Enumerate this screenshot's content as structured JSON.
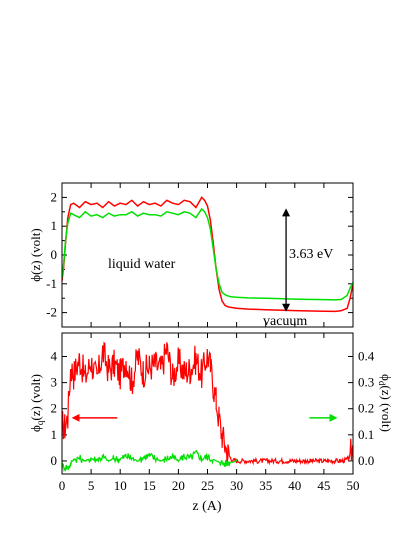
{
  "chart_data": [
    {
      "type": "line",
      "ylabel": "ϕ(z) (volt)",
      "xlim": [
        0,
        50
      ],
      "ylim": [
        -2.5,
        2.5
      ],
      "yticks": [
        -2,
        -1,
        0,
        1,
        2
      ],
      "x_ticks": [
        0,
        5,
        10,
        15,
        20,
        25,
        30,
        35,
        40,
        45,
        50
      ],
      "annotations": {
        "liquid": "liquid water",
        "vacuum": "vacuum",
        "gap": "3.63 eV"
      },
      "gap_arrow": {
        "x": 38.5,
        "y_top": 1.55,
        "y_bottom": -1.9
      },
      "series": [
        {
          "color": "#ff0000",
          "x": [
            0,
            0.3,
            0.6,
            1,
            1.5,
            2,
            3,
            4,
            5,
            6,
            7,
            8,
            9,
            10,
            11,
            12,
            13,
            14,
            15,
            16,
            17,
            18,
            19,
            20,
            21,
            22,
            23,
            24,
            24.5,
            25,
            25.5,
            26,
            26.5,
            27,
            27.5,
            28,
            28.5,
            29,
            30,
            32,
            35,
            38,
            40,
            42,
            45,
            47,
            48,
            49,
            49.5,
            50
          ],
          "y": [
            -0.9,
            -0.4,
            0.4,
            1.3,
            1.75,
            1.8,
            1.65,
            1.85,
            1.75,
            1.8,
            1.65,
            1.85,
            1.7,
            1.8,
            1.75,
            1.9,
            1.7,
            1.85,
            1.75,
            1.8,
            1.7,
            1.9,
            1.8,
            1.75,
            1.9,
            1.85,
            1.65,
            2.0,
            1.9,
            1.7,
            1.2,
            0.4,
            -0.5,
            -1.2,
            -1.6,
            -1.75,
            -1.8,
            -1.82,
            -1.85,
            -1.88,
            -1.9,
            -1.92,
            -1.93,
            -1.94,
            -1.95,
            -1.96,
            -1.93,
            -1.85,
            -1.5,
            -1.0
          ]
        },
        {
          "color": "#00e000",
          "x": [
            0,
            0.3,
            0.6,
            1,
            1.5,
            2,
            3,
            4,
            5,
            6,
            7,
            8,
            9,
            10,
            11,
            12,
            13,
            14,
            15,
            16,
            17,
            18,
            19,
            20,
            21,
            22,
            23,
            24,
            24.5,
            25,
            25.5,
            26,
            26.5,
            27,
            27.5,
            28,
            28.5,
            29,
            30,
            32,
            35,
            38,
            40,
            42,
            45,
            47,
            48,
            49,
            49.5,
            50
          ],
          "y": [
            -0.8,
            -0.3,
            0.5,
            1.1,
            1.45,
            1.4,
            1.3,
            1.5,
            1.35,
            1.4,
            1.3,
            1.45,
            1.35,
            1.4,
            1.4,
            1.5,
            1.35,
            1.45,
            1.4,
            1.4,
            1.35,
            1.5,
            1.45,
            1.4,
            1.5,
            1.45,
            1.3,
            1.6,
            1.5,
            1.3,
            0.9,
            0.2,
            -0.5,
            -1.0,
            -1.3,
            -1.38,
            -1.42,
            -1.45,
            -1.47,
            -1.49,
            -1.5,
            -1.52,
            -1.53,
            -1.54,
            -1.55,
            -1.56,
            -1.54,
            -1.4,
            -1.15,
            -0.95
          ]
        }
      ]
    },
    {
      "type": "line",
      "xlabel": "z (A)",
      "ylabel": "ϕq(z) (volt)",
      "ylabel_right": "ϕd(z) (volt)",
      "xlim": [
        0,
        50
      ],
      "ylim_left": [
        -0.5,
        4.9
      ],
      "ylim_right": [
        -0.05,
        0.49
      ],
      "x_ticks": [
        0,
        5,
        10,
        15,
        20,
        25,
        30,
        35,
        40,
        45,
        50
      ],
      "yticks_left": [
        0,
        1,
        2,
        3,
        4
      ],
      "yticks_right": [
        0.0,
        0.1,
        0.2,
        0.3,
        0.4
      ],
      "arrows": {
        "red_arrow_x": [
          2,
          9.5
        ],
        "green_arrow_x": [
          42.5,
          47
        ],
        "y": 1.65
      },
      "series": [
        {
          "color": "#ff0000",
          "axis": "left",
          "x": [
            0,
            0.5,
            1,
            1.5,
            2,
            3,
            4,
            5,
            6,
            7,
            8,
            9,
            10,
            11,
            12,
            13,
            14,
            15,
            16,
            17,
            18,
            19,
            20,
            21,
            22,
            23,
            24,
            25,
            25.5,
            26,
            26.5,
            27,
            27.5,
            28,
            28.5,
            29,
            29.5,
            30,
            32,
            35,
            40,
            45,
            47,
            48,
            49,
            49.5,
            50
          ],
          "y": [
            1.4,
            1.3,
            1.7,
            3.6,
            3.3,
            3.9,
            3.2,
            3.8,
            3.1,
            4.2,
            3.5,
            3.7,
            3.3,
            3.9,
            3.0,
            4.0,
            3.4,
            3.6,
            3.7,
            3.5,
            4.3,
            3.2,
            3.8,
            3.4,
            3.5,
            3.9,
            3.3,
            4.1,
            3.6,
            2.9,
            2.3,
            1.6,
            1.0,
            0.6,
            0.3,
            0.1,
            0.02,
            0.0,
            0.0,
            0.0,
            0.0,
            0.0,
            0.0,
            0.0,
            0.05,
            0.2,
            0.55
          ]
        },
        {
          "color": "#00e000",
          "axis": "right",
          "x": [
            0,
            1,
            1.5,
            2,
            3,
            4,
            5,
            6,
            7,
            8,
            9,
            10,
            11,
            12,
            13,
            14,
            15,
            16,
            17,
            18,
            19,
            20,
            21,
            22,
            23,
            24,
            25,
            26,
            27,
            28,
            29,
            30
          ],
          "y": [
            -0.02,
            -0.025,
            -0.01,
            0.005,
            0.01,
            0.0,
            0.01,
            0.005,
            0.015,
            0.0,
            0.01,
            0.005,
            0.02,
            0.01,
            0.0,
            0.015,
            0.02,
            0.01,
            0.0,
            0.01,
            0.015,
            0.0,
            0.02,
            0.01,
            0.03,
            0.01,
            0.015,
            0.005,
            -0.005,
            -0.01,
            -0.005,
            0.0
          ]
        }
      ]
    }
  ]
}
